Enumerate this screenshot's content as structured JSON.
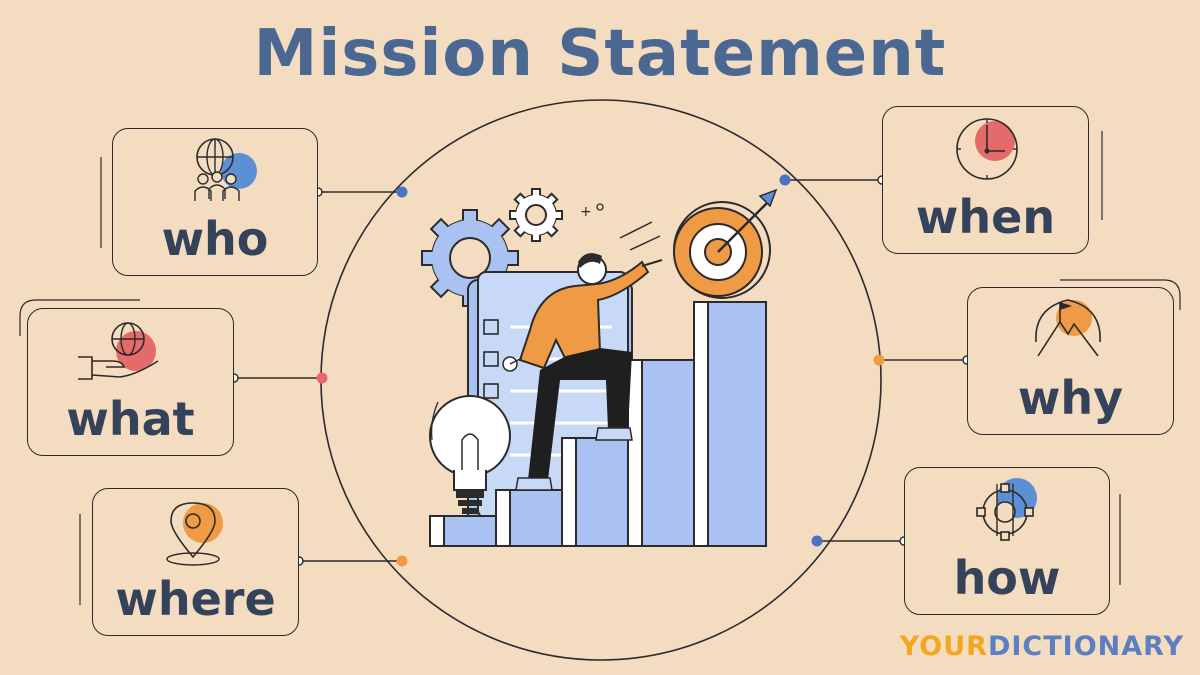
{
  "title": "Mission Statement",
  "cards": {
    "who": "who",
    "what": "what",
    "where": "where",
    "when": "when",
    "why": "why",
    "how": "how"
  },
  "brand": {
    "your": "YOUR",
    "rest": "DICTIONARY"
  },
  "icons": {
    "who": "globe-people-icon",
    "what": "hand-globe-icon",
    "where": "location-pin-icon",
    "when": "clock-icon",
    "why": "mountain-flag-icon",
    "how": "gear-wrench-icon"
  },
  "colors": {
    "background": "#f4dcc1",
    "title": "#4a6891",
    "label": "#34425a",
    "blue": "#5b8fd6",
    "red": "#e56a6a",
    "orange": "#ef9a45",
    "bar": "#a9c2f2",
    "brand_blue": "#5b7fbf",
    "brand_yellow": "#f2a81e"
  }
}
